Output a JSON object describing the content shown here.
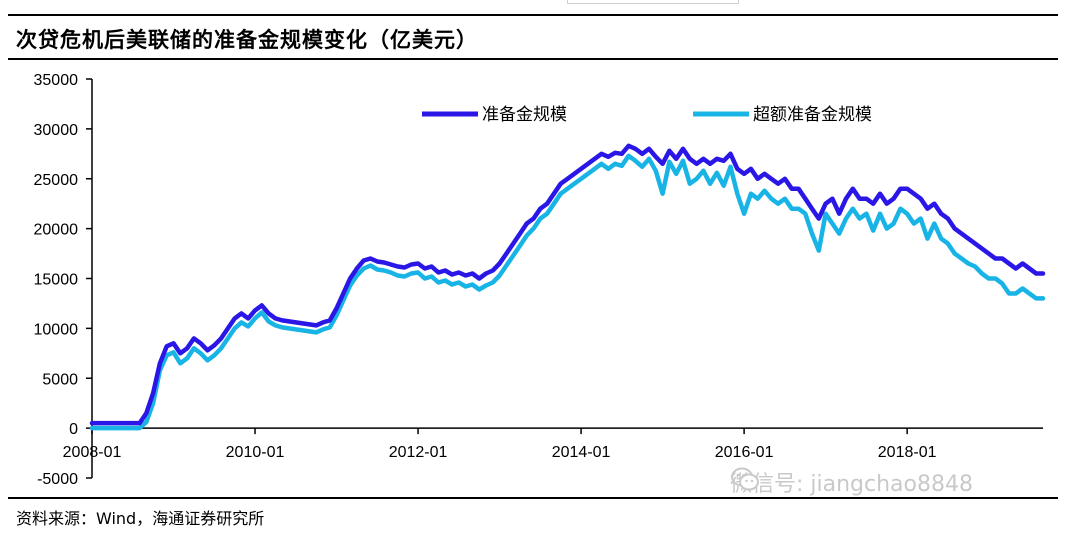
{
  "header": {
    "title": "次贷危机后美联储的准备金规模变化（亿美元）"
  },
  "footer": {
    "source": "资料来源：Wind，海通证券研究所"
  },
  "watermark": {
    "text": "微信号: jiangchao8848",
    "icon": "wechat-icon"
  },
  "colors": {
    "reserves": "#2a16e6",
    "excess": "#19b4e6"
  },
  "chart_data": {
    "type": "line",
    "title": "次贷危机后美联储的准备金规模变化（亿美元）",
    "xlabel": "",
    "ylabel": "",
    "ylim": [
      -5000,
      35000
    ],
    "yticks": [
      -5000,
      0,
      5000,
      10000,
      15000,
      20000,
      25000,
      30000,
      35000
    ],
    "ytick_labels": [
      "-5000",
      "0",
      "5000",
      "10000",
      "15000",
      "20000",
      "25000",
      "30000",
      "35000"
    ],
    "xlim": [
      "2008-01",
      "2019-09"
    ],
    "xtick_labels": [
      "2008-01",
      "2010-01",
      "2012-01",
      "2014-01",
      "2016-01",
      "2018-01"
    ],
    "legend": "top",
    "grid": false,
    "series": [
      {
        "name": "准备金规模",
        "color": "#2a16e6",
        "x": [
          "2008-01",
          "2008-08",
          "2008-09",
          "2008-10",
          "2008-11",
          "2008-12",
          "2009-01",
          "2009-02",
          "2009-03",
          "2009-04",
          "2009-05",
          "2009-06",
          "2009-07",
          "2009-08",
          "2009-09",
          "2009-10",
          "2009-11",
          "2009-12",
          "2010-01",
          "2010-02",
          "2010-03",
          "2010-04",
          "2010-05",
          "2010-06",
          "2010-07",
          "2010-08",
          "2010-09",
          "2010-10",
          "2010-11",
          "2010-12",
          "2011-01",
          "2011-02",
          "2011-03",
          "2011-04",
          "2011-05",
          "2011-06",
          "2011-07",
          "2011-08",
          "2011-09",
          "2011-10",
          "2011-11",
          "2011-12",
          "2012-01",
          "2012-02",
          "2012-03",
          "2012-04",
          "2012-05",
          "2012-06",
          "2012-07",
          "2012-08",
          "2012-09",
          "2012-10",
          "2012-11",
          "2012-12",
          "2013-01",
          "2013-02",
          "2013-03",
          "2013-04",
          "2013-05",
          "2013-06",
          "2013-07",
          "2013-08",
          "2013-09",
          "2013-10",
          "2013-11",
          "2013-12",
          "2014-01",
          "2014-02",
          "2014-03",
          "2014-04",
          "2014-05",
          "2014-06",
          "2014-07",
          "2014-08",
          "2014-09",
          "2014-10",
          "2014-11",
          "2014-12",
          "2015-01",
          "2015-02",
          "2015-03",
          "2015-04",
          "2015-05",
          "2015-06",
          "2015-07",
          "2015-08",
          "2015-09",
          "2015-10",
          "2015-11",
          "2015-12",
          "2016-01",
          "2016-02",
          "2016-03",
          "2016-04",
          "2016-05",
          "2016-06",
          "2016-07",
          "2016-08",
          "2016-09",
          "2016-10",
          "2016-11",
          "2016-12",
          "2017-01",
          "2017-02",
          "2017-03",
          "2017-04",
          "2017-05",
          "2017-06",
          "2017-07",
          "2017-08",
          "2017-09",
          "2017-10",
          "2017-11",
          "2017-12",
          "2018-01",
          "2018-02",
          "2018-03",
          "2018-04",
          "2018-05",
          "2018-06",
          "2018-07",
          "2018-08",
          "2018-09",
          "2018-10",
          "2018-11",
          "2018-12",
          "2019-01",
          "2019-02",
          "2019-03",
          "2019-04",
          "2019-05",
          "2019-06",
          "2019-07",
          "2019-08",
          "2019-09"
        ],
        "values": [
          500,
          500,
          1500,
          3500,
          6500,
          8200,
          8500,
          7500,
          8000,
          9000,
          8500,
          7800,
          8300,
          9000,
          10000,
          11000,
          11500,
          11000,
          11800,
          12300,
          11500,
          11000,
          10800,
          10700,
          10600,
          10500,
          10400,
          10300,
          10600,
          10800,
          12000,
          13500,
          15000,
          16000,
          16800,
          17000,
          16700,
          16600,
          16400,
          16200,
          16100,
          16400,
          16500,
          16000,
          16200,
          15600,
          15800,
          15400,
          15600,
          15300,
          15500,
          15000,
          15500,
          15800,
          16500,
          17500,
          18500,
          19500,
          20500,
          21000,
          22000,
          22500,
          23500,
          24500,
          25000,
          25500,
          26000,
          26500,
          27000,
          27500,
          27200,
          27600,
          27500,
          28300,
          28000,
          27500,
          28000,
          27200,
          26500,
          27800,
          27000,
          28000,
          27000,
          26500,
          27000,
          26500,
          27000,
          26800,
          27500,
          26000,
          25500,
          26000,
          25000,
          25500,
          25000,
          24500,
          25000,
          24000,
          24000,
          23000,
          22000,
          21000,
          22500,
          23000,
          21500,
          23000,
          24000,
          23000,
          23000,
          22500,
          23500,
          22500,
          23000,
          24000,
          24000,
          23500,
          23000,
          22000,
          22500,
          21500,
          21000,
          20000,
          19500,
          19000,
          18500,
          18000,
          17500,
          17000,
          17000,
          16500,
          16000,
          16500,
          16000,
          15500,
          15500
        ]
      },
      {
        "name": "超额准备金规模",
        "color": "#19b4e6",
        "x": [
          "2008-01",
          "2008-08",
          "2008-09",
          "2008-10",
          "2008-11",
          "2008-12",
          "2009-01",
          "2009-02",
          "2009-03",
          "2009-04",
          "2009-05",
          "2009-06",
          "2009-07",
          "2009-08",
          "2009-09",
          "2009-10",
          "2009-11",
          "2009-12",
          "2010-01",
          "2010-02",
          "2010-03",
          "2010-04",
          "2010-05",
          "2010-06",
          "2010-07",
          "2010-08",
          "2010-09",
          "2010-10",
          "2010-11",
          "2010-12",
          "2011-01",
          "2011-02",
          "2011-03",
          "2011-04",
          "2011-05",
          "2011-06",
          "2011-07",
          "2011-08",
          "2011-09",
          "2011-10",
          "2011-11",
          "2011-12",
          "2012-01",
          "2012-02",
          "2012-03",
          "2012-04",
          "2012-05",
          "2012-06",
          "2012-07",
          "2012-08",
          "2012-09",
          "2012-10",
          "2012-11",
          "2012-12",
          "2013-01",
          "2013-02",
          "2013-03",
          "2013-04",
          "2013-05",
          "2013-06",
          "2013-07",
          "2013-08",
          "2013-09",
          "2013-10",
          "2013-11",
          "2013-12",
          "2014-01",
          "2014-02",
          "2014-03",
          "2014-04",
          "2014-05",
          "2014-06",
          "2014-07",
          "2014-08",
          "2014-09",
          "2014-10",
          "2014-11",
          "2014-12",
          "2015-01",
          "2015-02",
          "2015-03",
          "2015-04",
          "2015-05",
          "2015-06",
          "2015-07",
          "2015-08",
          "2015-09",
          "2015-10",
          "2015-11",
          "2015-12",
          "2016-01",
          "2016-02",
          "2016-03",
          "2016-04",
          "2016-05",
          "2016-06",
          "2016-07",
          "2016-08",
          "2016-09",
          "2016-10",
          "2016-11",
          "2016-12",
          "2017-01",
          "2017-02",
          "2017-03",
          "2017-04",
          "2017-05",
          "2017-06",
          "2017-07",
          "2017-08",
          "2017-09",
          "2017-10",
          "2017-11",
          "2017-12",
          "2018-01",
          "2018-02",
          "2018-03",
          "2018-04",
          "2018-05",
          "2018-06",
          "2018-07",
          "2018-08",
          "2018-09",
          "2018-10",
          "2018-11",
          "2018-12",
          "2019-01",
          "2019-02",
          "2019-03",
          "2019-04",
          "2019-05",
          "2019-06",
          "2019-07",
          "2019-08",
          "2019-09"
        ],
        "values": [
          0,
          0,
          600,
          2500,
          5800,
          7300,
          7600,
          6500,
          7000,
          8000,
          7500,
          6800,
          7300,
          8000,
          9000,
          10000,
          10600,
          10200,
          11000,
          11600,
          10700,
          10300,
          10100,
          10000,
          9900,
          9800,
          9700,
          9600,
          9900,
          10100,
          11300,
          12800,
          14300,
          15300,
          16000,
          16300,
          15900,
          15800,
          15600,
          15300,
          15200,
          15500,
          15600,
          15000,
          15200,
          14600,
          14800,
          14400,
          14600,
          14200,
          14400,
          13900,
          14300,
          14600,
          15300,
          16300,
          17300,
          18300,
          19300,
          20000,
          21000,
          21500,
          22500,
          23500,
          24000,
          24500,
          25000,
          25500,
          26000,
          26500,
          26000,
          26500,
          26300,
          27300,
          26800,
          26200,
          27000,
          25800,
          23500,
          26700,
          25500,
          26800,
          24500,
          25000,
          25800,
          24500,
          25600,
          24300,
          26200,
          23500,
          21500,
          23500,
          23000,
          23800,
          23000,
          22500,
          23000,
          22000,
          22000,
          21500,
          19500,
          17800,
          21500,
          20500,
          19500,
          21000,
          22000,
          21000,
          21500,
          19800,
          21500,
          20000,
          20500,
          22000,
          21500,
          20500,
          21000,
          19000,
          20500,
          19000,
          18500,
          17500,
          17000,
          16500,
          16200,
          15500,
          15000,
          15000,
          14500,
          13500,
          13500,
          14000,
          13500,
          13000,
          13000
        ]
      }
    ]
  }
}
